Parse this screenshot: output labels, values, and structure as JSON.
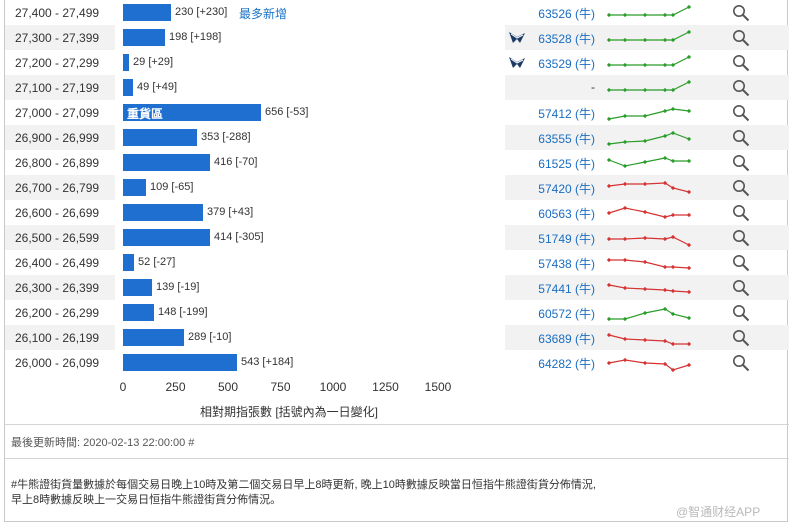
{
  "rows": [
    {
      "range": "27,400 - 27,499",
      "value": 230,
      "change": "[+230]",
      "tag": "最多新增",
      "code": "63526 (牛)",
      "ship": false,
      "trend": "up"
    },
    {
      "range": "27,300 - 27,399",
      "value": 198,
      "change": "[+198]",
      "tag": "",
      "code": "63528 (牛)",
      "ship": true,
      "trend": "up"
    },
    {
      "range": "27,200 - 27,299",
      "value": 29,
      "change": "[+29]",
      "tag": "",
      "code": "63529 (牛)",
      "ship": true,
      "trend": "up"
    },
    {
      "range": "27,100 - 27,199",
      "value": 49,
      "change": "[+49]",
      "tag": "",
      "code": "-",
      "ship": false,
      "trend": "up"
    },
    {
      "range": "27,000 - 27,099",
      "value": 656,
      "change": "[-53]",
      "tag": "",
      "inner": "重貨區",
      "code": "57412 (牛)",
      "ship": false,
      "trend": "up2"
    },
    {
      "range": "26,900 - 26,999",
      "value": 353,
      "change": "[-288]",
      "tag": "",
      "code": "63555 (牛)",
      "ship": false,
      "trend": "up3"
    },
    {
      "range": "26,800 - 26,899",
      "value": 416,
      "change": "[-70]",
      "tag": "",
      "code": "61525 (牛)",
      "ship": false,
      "trend": "wave"
    },
    {
      "range": "26,700 - 26,799",
      "value": 109,
      "change": "[-65]",
      "tag": "",
      "code": "57420 (牛)",
      "ship": false,
      "trend": "down"
    },
    {
      "range": "26,600 - 26,699",
      "value": 379,
      "change": "[+43]",
      "tag": "",
      "code": "60563 (牛)",
      "ship": false,
      "trend": "down2"
    },
    {
      "range": "26,500 - 26,599",
      "value": 414,
      "change": "[-305]",
      "tag": "",
      "code": "51749 (牛)",
      "ship": false,
      "trend": "down3"
    },
    {
      "range": "26,400 - 26,499",
      "value": 52,
      "change": "[-27]",
      "tag": "",
      "code": "57438 (牛)",
      "ship": false,
      "trend": "down4"
    },
    {
      "range": "26,300 - 26,399",
      "value": 139,
      "change": "[-19]",
      "tag": "",
      "code": "57441 (牛)",
      "ship": false,
      "trend": "down5"
    },
    {
      "range": "26,200 - 26,299",
      "value": 148,
      "change": "[-199]",
      "tag": "",
      "code": "60572 (牛)",
      "ship": false,
      "trend": "up4"
    },
    {
      "range": "26,100 - 26,199",
      "value": 289,
      "change": "[-10]",
      "tag": "",
      "code": "63689 (牛)",
      "ship": false,
      "trend": "down6"
    },
    {
      "range": "26,000 - 26,099",
      "value": 543,
      "change": "[+184]",
      "tag": "",
      "code": "64282 (牛)",
      "ship": false,
      "trend": "down7"
    }
  ],
  "axis": {
    "ticks": [
      "0",
      "250",
      "500",
      "750",
      "1000",
      "1250",
      "1500"
    ],
    "title": "相對期指張數 [括號內為一日變化]"
  },
  "footer": {
    "updated": "最後更新時間: 2020-02-13 22:00:00 #",
    "note_line1": "#牛熊證街貨量數據於每個交易日晚上10時及第二個交易日早上8時更新, 晚上10時數據反映當日恒指牛熊證街貨分佈情況,",
    "note_line2": "早上8時數據反映上一交易日恒指牛熊證街貨分佈情況。",
    "watermark": "@智通财经APP"
  },
  "colors": {
    "bar": "#1f6fd1",
    "up": "#2a9d2a",
    "down": "#d63333",
    "link": "#1a6dc2"
  },
  "icons": {
    "search": "magnifier-icon",
    "ship": "ship-icon"
  }
}
